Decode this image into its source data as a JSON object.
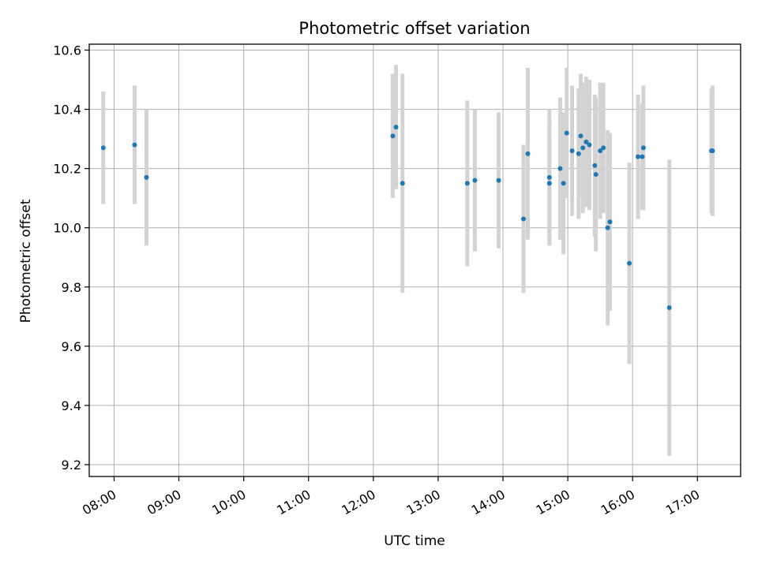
{
  "chart_data": {
    "type": "scatter",
    "title": "Photometric offset variation",
    "xlabel": "UTC time",
    "ylabel": "Photometric offset",
    "x_ticks": [
      "08:00",
      "09:00",
      "10:00",
      "11:00",
      "12:00",
      "13:00",
      "14:00",
      "15:00",
      "16:00",
      "17:00"
    ],
    "y_ticks": [
      "9.2",
      "9.4",
      "9.6",
      "9.8",
      "10.0",
      "10.2",
      "10.4",
      "10.6"
    ],
    "xlim": [
      "07:37",
      "17:40"
    ],
    "ylim": [
      9.16,
      10.62
    ],
    "grid": true,
    "point_color": "#1f77b4",
    "errorbar_color": "#d3d3d3",
    "points": [
      {
        "t": "07:50",
        "y": 10.27,
        "err": 0.19
      },
      {
        "t": "08:19",
        "y": 10.28,
        "err": 0.2
      },
      {
        "t": "08:30",
        "y": 10.17,
        "err": 0.23
      },
      {
        "t": "12:18",
        "y": 10.31,
        "err": 0.21
      },
      {
        "t": "12:21",
        "y": 10.34,
        "err": 0.21
      },
      {
        "t": "12:27",
        "y": 10.15,
        "err": 0.37
      },
      {
        "t": "13:27",
        "y": 10.15,
        "err": 0.28
      },
      {
        "t": "13:34",
        "y": 10.16,
        "err": 0.24
      },
      {
        "t": "13:56",
        "y": 10.16,
        "err": 0.23
      },
      {
        "t": "14:19",
        "y": 10.03,
        "err": 0.25
      },
      {
        "t": "14:23",
        "y": 10.25,
        "err": 0.29
      },
      {
        "t": "14:43",
        "y": 10.17,
        "err": 0.23
      },
      {
        "t": "14:43",
        "y": 10.15,
        "err": 0.21
      },
      {
        "t": "14:53",
        "y": 10.2,
        "err": 0.24
      },
      {
        "t": "14:56",
        "y": 10.15,
        "err": 0.24
      },
      {
        "t": "14:59",
        "y": 10.32,
        "err": 0.22
      },
      {
        "t": "15:04",
        "y": 10.26,
        "err": 0.22
      },
      {
        "t": "15:10",
        "y": 10.25,
        "err": 0.22
      },
      {
        "t": "15:12",
        "y": 10.31,
        "err": 0.21
      },
      {
        "t": "15:14",
        "y": 10.27,
        "err": 0.22
      },
      {
        "t": "15:17",
        "y": 10.29,
        "err": 0.22
      },
      {
        "t": "15:20",
        "y": 10.28,
        "err": 0.22
      },
      {
        "t": "15:25",
        "y": 10.21,
        "err": 0.24
      },
      {
        "t": "15:26",
        "y": 10.18,
        "err": 0.26
      },
      {
        "t": "15:30",
        "y": 10.26,
        "err": 0.23
      },
      {
        "t": "15:33",
        "y": 10.27,
        "err": 0.22
      },
      {
        "t": "15:37",
        "y": 10.0,
        "err": 0.33
      },
      {
        "t": "15:39",
        "y": 10.02,
        "err": 0.3
      },
      {
        "t": "15:57",
        "y": 9.88,
        "err": 0.34
      },
      {
        "t": "16:05",
        "y": 10.24,
        "err": 0.21
      },
      {
        "t": "16:09",
        "y": 10.24,
        "err": 0.18
      },
      {
        "t": "16:10",
        "y": 10.27,
        "err": 0.21
      },
      {
        "t": "16:34",
        "y": 9.73,
        "err": 0.5
      },
      {
        "t": "17:13",
        "y": 10.26,
        "err": 0.21
      },
      {
        "t": "17:14",
        "y": 10.26,
        "err": 0.22
      }
    ]
  }
}
